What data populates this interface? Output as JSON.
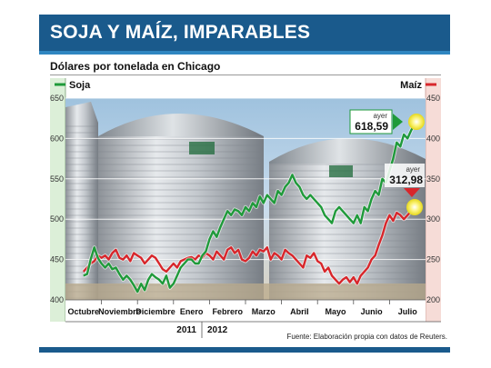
{
  "header": {
    "title": "SOJA Y MAÍZ, IMPARABLES"
  },
  "subtitle": "Dólares por tonelada en Chicago",
  "source": "Fuente: Elaboración propia con datos de Reuters.",
  "colors": {
    "soja": "#1f9a3a",
    "maiz": "#d8262b",
    "banner": "#1a5a8c",
    "left_band": "#dcefd8",
    "right_band": "#f6dcd7"
  },
  "chart_data": {
    "type": "line",
    "x_categories": [
      "Octubre",
      "Noviembre",
      "Diciembre",
      "Enero",
      "Febrero",
      "Marzo",
      "Abril",
      "Mayo",
      "Junio",
      "Julio"
    ],
    "year_labels": [
      "2011",
      "2012"
    ],
    "left_axis": {
      "ticks": [
        400,
        450,
        500,
        550,
        600,
        650
      ],
      "ylim": [
        400,
        650
      ]
    },
    "right_axis": {
      "ticks": [
        200,
        250,
        300,
        350,
        400,
        450
      ],
      "ylim": [
        200,
        450
      ]
    },
    "series": [
      {
        "name": "Soja",
        "axis": "left",
        "x": [
          0,
          0.1,
          0.2,
          0.3,
          0.4,
          0.5,
          0.6,
          0.7,
          0.8,
          0.9,
          1.0,
          1.1,
          1.2,
          1.3,
          1.4,
          1.5,
          1.6,
          1.7,
          1.8,
          1.9,
          2.0,
          2.1,
          2.2,
          2.3,
          2.4,
          2.5,
          2.6,
          2.7,
          2.8,
          2.9,
          3.0,
          3.1,
          3.2,
          3.3,
          3.4,
          3.5,
          3.6,
          3.7,
          3.8,
          3.9,
          4.0,
          4.1,
          4.2,
          4.3,
          4.4,
          4.5,
          4.6,
          4.7,
          4.8,
          4.9,
          5.0,
          5.1,
          5.2,
          5.3,
          5.4,
          5.5,
          5.6,
          5.7,
          5.8,
          5.9,
          6.0,
          6.1,
          6.2,
          6.3,
          6.4,
          6.5,
          6.6,
          6.7,
          6.8,
          6.9,
          7.0,
          7.1,
          7.2,
          7.3,
          7.4,
          7.5,
          7.6,
          7.7,
          7.8,
          7.9,
          8.0,
          8.1,
          8.2,
          8.3,
          8.4,
          8.5,
          8.6,
          8.7,
          8.8,
          8.9,
          9.0,
          9.1,
          9.2
        ],
        "values": [
          430,
          432,
          450,
          465,
          452,
          445,
          440,
          445,
          438,
          440,
          432,
          425,
          430,
          425,
          418,
          410,
          420,
          412,
          425,
          432,
          428,
          425,
          420,
          430,
          415,
          420,
          430,
          440,
          445,
          450,
          450,
          445,
          445,
          455,
          460,
          475,
          485,
          478,
          490,
          500,
          510,
          505,
          512,
          510,
          505,
          515,
          510,
          520,
          515,
          528,
          520,
          530,
          525,
          520,
          535,
          530,
          540,
          545,
          555,
          545,
          540,
          530,
          525,
          530,
          525,
          520,
          515,
          505,
          500,
          495,
          510,
          515,
          510,
          505,
          500,
          495,
          505,
          495,
          515,
          510,
          525,
          535,
          530,
          550,
          545,
          560,
          575,
          595,
          590,
          605,
          600,
          610,
          618.59
        ]
      },
      {
        "name": "Maíz",
        "axis": "right",
        "x": [
          0,
          0.1,
          0.2,
          0.3,
          0.4,
          0.5,
          0.6,
          0.7,
          0.8,
          0.9,
          1.0,
          1.1,
          1.2,
          1.3,
          1.4,
          1.5,
          1.6,
          1.7,
          1.8,
          1.9,
          2.0,
          2.1,
          2.2,
          2.3,
          2.4,
          2.5,
          2.6,
          2.7,
          2.8,
          2.9,
          3.0,
          3.1,
          3.2,
          3.3,
          3.4,
          3.5,
          3.6,
          3.7,
          3.8,
          3.9,
          4.0,
          4.1,
          4.2,
          4.3,
          4.4,
          4.5,
          4.6,
          4.7,
          4.8,
          4.9,
          5.0,
          5.1,
          5.2,
          5.3,
          5.4,
          5.5,
          5.6,
          5.7,
          5.8,
          5.9,
          6.0,
          6.1,
          6.2,
          6.3,
          6.4,
          6.5,
          6.6,
          6.7,
          6.8,
          6.9,
          7.0,
          7.1,
          7.2,
          7.3,
          7.4,
          7.5,
          7.6,
          7.7,
          7.8,
          7.9,
          8.0,
          8.1,
          8.2,
          8.3,
          8.4,
          8.5,
          8.6,
          8.7,
          8.8,
          8.9,
          9.0,
          9.1,
          9.2
        ],
        "values": [
          235,
          240,
          245,
          248,
          255,
          252,
          255,
          250,
          258,
          262,
          252,
          250,
          255,
          248,
          258,
          255,
          252,
          245,
          250,
          255,
          252,
          245,
          238,
          235,
          240,
          245,
          240,
          248,
          250,
          252,
          253,
          250,
          255,
          252,
          258,
          255,
          250,
          260,
          255,
          250,
          262,
          265,
          258,
          262,
          250,
          248,
          252,
          260,
          255,
          262,
          260,
          265,
          250,
          258,
          255,
          250,
          262,
          258,
          255,
          250,
          245,
          240,
          255,
          252,
          258,
          248,
          245,
          235,
          240,
          230,
          225,
          220,
          225,
          228,
          222,
          228,
          220,
          230,
          235,
          240,
          250,
          255,
          268,
          280,
          295,
          305,
          298,
          308,
          305,
          300,
          305,
          310,
          312.98
        ]
      }
    ],
    "annotations": [
      {
        "series": "Soja",
        "label": "ayer",
        "value": "618,59"
      },
      {
        "series": "Maíz",
        "label": "ayer",
        "value": "312,98"
      }
    ]
  }
}
